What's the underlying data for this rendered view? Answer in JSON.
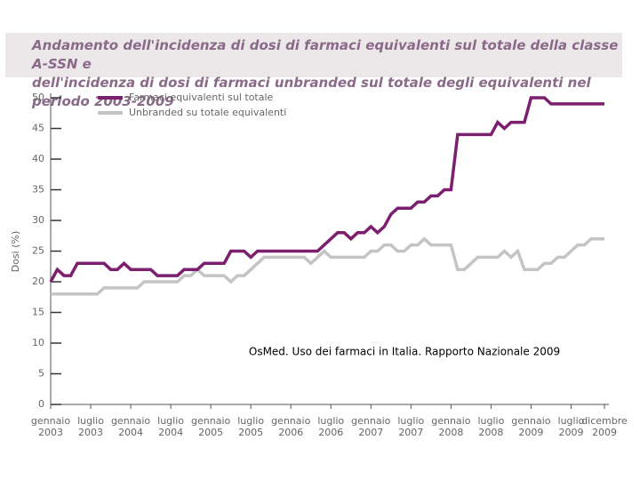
{
  "chart_data": {
    "type": "line",
    "title": "Andamento dell'incidenza di dosi di farmaci equivalenti sul totale della classe A-SSN e\ndell'incidenza di dosi di farmaci unbranded sul totale degli equivalenti nel periodo 2003-2009",
    "y_label": "Dosi (%)",
    "annotation": "OsMed. Uso dei farmaci in Italia. Rapporto Nazionale 2009",
    "categories": [
      "gennaio\n2003",
      null,
      null,
      null,
      null,
      null,
      "luglio\n2003",
      null,
      null,
      null,
      null,
      null,
      "gennaio\n2004",
      null,
      null,
      null,
      null,
      null,
      "luglio\n2004",
      null,
      null,
      null,
      null,
      null,
      "gennaio\n2005",
      null,
      null,
      null,
      null,
      null,
      "luglio\n2005",
      null,
      null,
      null,
      null,
      null,
      "gennaio\n2006",
      null,
      null,
      null,
      null,
      null,
      "luglio\n2006",
      null,
      null,
      null,
      null,
      null,
      "gennaio\n2007",
      null,
      null,
      null,
      null,
      null,
      "luglio\n2007",
      null,
      null,
      null,
      null,
      null,
      "gennaio\n2008",
      null,
      null,
      null,
      null,
      null,
      "luglio\n2008",
      null,
      null,
      null,
      null,
      null,
      "gennaio\n2009",
      null,
      null,
      null,
      null,
      null,
      "luglio\n2009",
      null,
      null,
      null,
      null,
      "dicembre\n2009"
    ],
    "series": [
      {
        "name": "Farmaci equivalenti sul totale",
        "color": "#7b1f6e",
        "values": [
          20,
          22,
          21,
          21,
          23,
          23,
          23,
          23,
          23,
          22,
          22,
          23,
          22,
          22,
          22,
          22,
          21,
          21,
          21,
          21,
          22,
          22,
          22,
          23,
          23,
          23,
          23,
          25,
          25,
          25,
          24,
          25,
          25,
          25,
          25,
          25,
          25,
          25,
          25,
          25,
          25,
          26,
          27,
          28,
          28,
          27,
          28,
          28,
          29,
          28,
          29,
          31,
          32,
          32,
          32,
          33,
          33,
          34,
          34,
          35,
          35,
          44,
          44,
          44,
          44,
          44,
          44,
          46,
          45,
          46,
          46,
          46,
          50,
          50,
          50,
          49,
          49,
          49,
          49,
          49,
          49,
          49,
          49,
          49
        ]
      },
      {
        "name": "Unbranded su totale equivalenti",
        "color": "#c4c4c4",
        "values": [
          18,
          18,
          18,
          18,
          18,
          18,
          18,
          18,
          19,
          19,
          19,
          19,
          19,
          19,
          20,
          20,
          20,
          20,
          20,
          20,
          21,
          21,
          22,
          21,
          21,
          21,
          21,
          20,
          21,
          21,
          22,
          23,
          24,
          24,
          24,
          24,
          24,
          24,
          24,
          23,
          24,
          25,
          24,
          24,
          24,
          24,
          24,
          24,
          25,
          25,
          26,
          26,
          25,
          25,
          26,
          26,
          27,
          26,
          26,
          26,
          26,
          22,
          22,
          23,
          24,
          24,
          24,
          24,
          25,
          24,
          25,
          22,
          22,
          22,
          23,
          23,
          24,
          24,
          25,
          26,
          26,
          27,
          27,
          27
        ]
      }
    ],
    "ylim": [
      0,
      50
    ],
    "yticks": [
      0,
      5,
      10,
      15,
      20,
      25,
      30,
      35,
      40,
      45,
      50
    ]
  }
}
